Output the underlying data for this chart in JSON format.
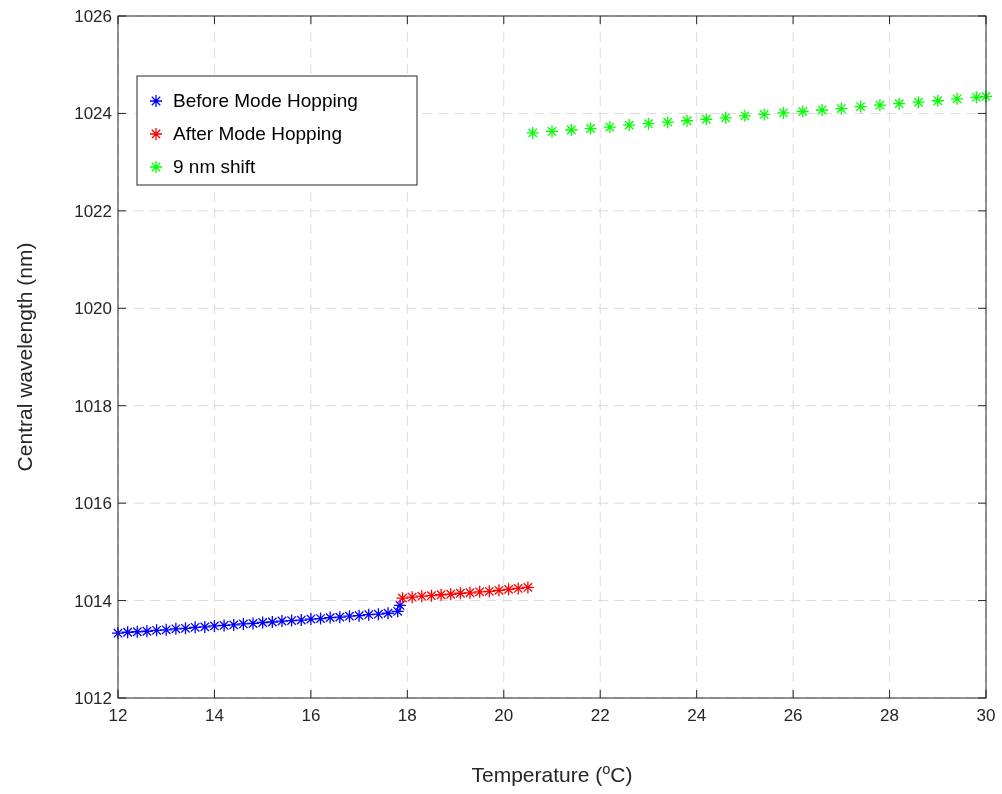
{
  "chart_data": {
    "type": "scatter",
    "xlabel": "Temperature ($^{o}$C)",
    "ylabel": "Central wavelength (nm)",
    "xlim": [
      12,
      30
    ],
    "ylim": [
      1012,
      1026
    ],
    "xticks": [
      12,
      14,
      16,
      18,
      20,
      22,
      24,
      26,
      28,
      30
    ],
    "yticks": [
      1012,
      1014,
      1016,
      1018,
      1020,
      1022,
      1024,
      1026
    ],
    "grid": true,
    "legend": "top left",
    "marker": "cross",
    "series": [
      {
        "name": "Before Mode Hopping",
        "color": "#0000ff",
        "x": [
          12.0,
          12.2,
          12.4,
          12.6,
          12.8,
          13.0,
          13.2,
          13.4,
          13.6,
          13.8,
          14.0,
          14.2,
          14.4,
          14.6,
          14.8,
          15.0,
          15.2,
          15.4,
          15.6,
          15.8,
          16.0,
          16.2,
          16.4,
          16.6,
          16.8,
          17.0,
          17.2,
          17.4,
          17.6,
          17.8,
          17.85
        ],
        "values": [
          1013.33,
          1013.35,
          1013.36,
          1013.37,
          1013.39,
          1013.4,
          1013.42,
          1013.43,
          1013.45,
          1013.46,
          1013.48,
          1013.49,
          1013.5,
          1013.52,
          1013.53,
          1013.55,
          1013.56,
          1013.58,
          1013.59,
          1013.6,
          1013.62,
          1013.63,
          1013.65,
          1013.66,
          1013.68,
          1013.69,
          1013.71,
          1013.72,
          1013.74,
          1013.78,
          1013.9
        ]
      },
      {
        "name": "After Mode Hopping",
        "color": "#ff0000",
        "x": [
          17.9,
          18.1,
          18.3,
          18.5,
          18.7,
          18.9,
          19.1,
          19.3,
          19.5,
          19.7,
          19.9,
          20.1,
          20.3,
          20.5
        ],
        "values": [
          1014.05,
          1014.07,
          1014.09,
          1014.1,
          1014.12,
          1014.13,
          1014.15,
          1014.16,
          1014.18,
          1014.19,
          1014.21,
          1014.23,
          1014.25,
          1014.27
        ]
      },
      {
        "name": "9 nm shift",
        "color": "#00ff00",
        "x": [
          20.6,
          21.0,
          21.4,
          21.8,
          22.2,
          22.6,
          23.0,
          23.4,
          23.8,
          24.2,
          24.6,
          25.0,
          25.4,
          25.8,
          26.2,
          26.6,
          27.0,
          27.4,
          27.8,
          28.2,
          28.6,
          29.0,
          29.4,
          29.8,
          30.0
        ],
        "values": [
          1023.6,
          1023.63,
          1023.66,
          1023.69,
          1023.72,
          1023.76,
          1023.79,
          1023.82,
          1023.85,
          1023.88,
          1023.91,
          1023.95,
          1023.98,
          1024.01,
          1024.04,
          1024.07,
          1024.1,
          1024.14,
          1024.17,
          1024.2,
          1024.23,
          1024.26,
          1024.3,
          1024.33,
          1024.35
        ]
      }
    ]
  }
}
